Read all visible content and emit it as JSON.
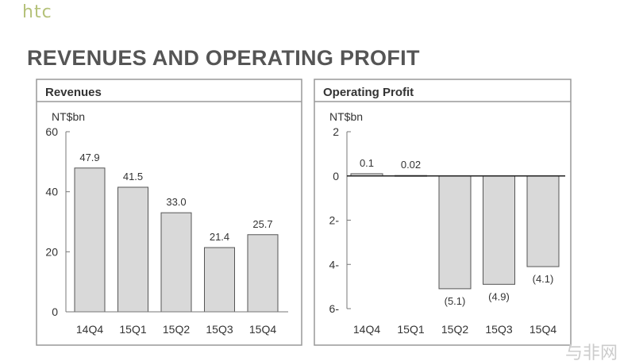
{
  "logo": "htc",
  "title": "REVENUES AND OPERATING PROFIT",
  "watermark": "与非网",
  "chart_data": [
    {
      "type": "bar",
      "title": "Revenues",
      "ylabel": "NT$bn",
      "categories": [
        "14Q4",
        "15Q1",
        "15Q2",
        "15Q3",
        "15Q4"
      ],
      "values": [
        47.9,
        41.5,
        33.0,
        21.4,
        25.7
      ],
      "labels": [
        "47.9",
        "41.5",
        "33.0",
        "21.4",
        "25.7"
      ],
      "ylim": [
        0,
        60
      ],
      "yticks": [
        0,
        20,
        40,
        60
      ],
      "ytick_labels": [
        "0",
        "20",
        "40",
        "60"
      ],
      "bar_color": "#d9d9d9",
      "grid": false
    },
    {
      "type": "bar",
      "title": "Operating Profit",
      "ylabel": "NT$bn",
      "categories": [
        "14Q4",
        "15Q1",
        "15Q2",
        "15Q3",
        "15Q4"
      ],
      "values": [
        0.1,
        0.02,
        -5.1,
        -4.9,
        -4.1
      ],
      "labels": [
        "0.1",
        "0.02",
        "(5.1)",
        "(4.9)",
        "(4.1)"
      ],
      "ylim": [
        -6,
        2
      ],
      "yticks": [
        2,
        0,
        -2,
        -4,
        -6
      ],
      "ytick_labels": [
        "2",
        "0",
        "2-",
        "4-",
        "6-"
      ],
      "bar_color": "#d9d9d9",
      "grid": false
    }
  ]
}
